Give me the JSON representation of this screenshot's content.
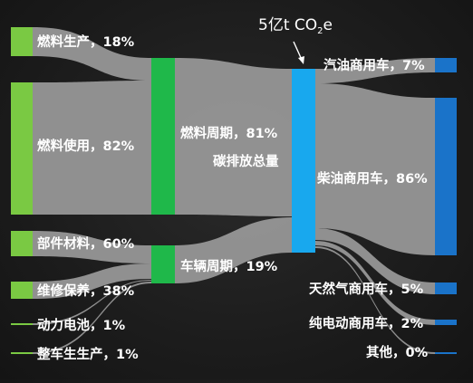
{
  "annotation": {
    "text": "5亿t CO",
    "sub": "2",
    "suffix": "e"
  },
  "center_label": "碳排放总量",
  "nodes": {
    "fuel_production": {
      "label": "燃料生产，18%",
      "color": "#7ac943"
    },
    "fuel_use": {
      "label": "燃料使用，82%",
      "color": "#7ac943"
    },
    "parts_materials": {
      "label": "部件材料，60%",
      "color": "#7ac943"
    },
    "maintenance": {
      "label": "维修保养，38%",
      "color": "#7ac943"
    },
    "power_battery": {
      "label": "动力电池，1%",
      "color": "#7ac943"
    },
    "vehicle_production": {
      "label": "整车生生产，1%",
      "color": "#7ac943"
    },
    "fuel_cycle": {
      "label": "燃料周期，81%",
      "color": "#1fb84a"
    },
    "vehicle_cycle": {
      "label": "车辆周期，19%",
      "color": "#1fb84a"
    },
    "total": {
      "label": "",
      "color": "#18a8ee"
    },
    "gasoline_cv": {
      "label": "汽油商用车，7%",
      "color": "#1a73c9"
    },
    "diesel_cv": {
      "label": "柴油商用车，86%",
      "color": "#1a73c9"
    },
    "gas_cv": {
      "label": "天然气商用车，5%",
      "color": "#1a73c9"
    },
    "bev_cv": {
      "label": "纯电动商用车，2%",
      "color": "#1a73c9"
    },
    "other": {
      "label": "其他，0%",
      "color": "#1a73c9"
    }
  },
  "flow_color": "#9a9a9a"
}
